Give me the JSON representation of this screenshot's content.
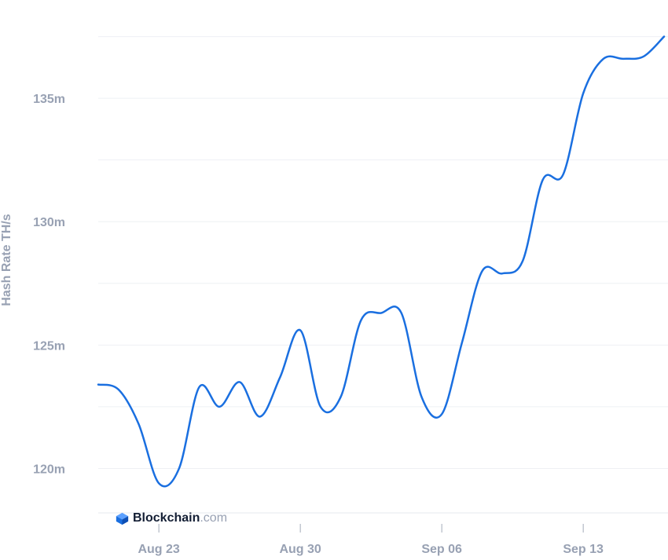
{
  "chart_data": {
    "type": "line",
    "title": "",
    "xlabel": "",
    "ylabel": "Hash Rate TH/s",
    "x_tick_labels": [
      "Aug 23",
      "Aug 30",
      "Sep 06",
      "Sep 13"
    ],
    "y_tick_labels": [
      "120m",
      "125m",
      "130m",
      "135m"
    ],
    "y_ticks": [
      120,
      125,
      130,
      135
    ],
    "ylim": [
      118.2,
      138.6
    ],
    "xlim": [
      "2023-08-20",
      "2023-09-17"
    ],
    "grid": true,
    "legend": "none",
    "series": [
      {
        "color": "#1a6fe0",
        "points": [
          {
            "x": "2023-08-20",
            "y": 123.4
          },
          {
            "x": "2023-08-21",
            "y": 123.2
          },
          {
            "x": "2023-08-22",
            "y": 121.8
          },
          {
            "x": "2023-08-23",
            "y": 119.4
          },
          {
            "x": "2023-08-24",
            "y": 120.0
          },
          {
            "x": "2023-08-25",
            "y": 123.3
          },
          {
            "x": "2023-08-26",
            "y": 122.5
          },
          {
            "x": "2023-08-27",
            "y": 123.5
          },
          {
            "x": "2023-08-28",
            "y": 122.1
          },
          {
            "x": "2023-08-29",
            "y": 123.7
          },
          {
            "x": "2023-08-30",
            "y": 125.6
          },
          {
            "x": "2023-08-31",
            "y": 122.5
          },
          {
            "x": "2023-09-01",
            "y": 122.9
          },
          {
            "x": "2023-09-02",
            "y": 126.0
          },
          {
            "x": "2023-09-03",
            "y": 126.3
          },
          {
            "x": "2023-09-04",
            "y": 126.3
          },
          {
            "x": "2023-09-05",
            "y": 122.9
          },
          {
            "x": "2023-09-06",
            "y": 122.2
          },
          {
            "x": "2023-09-07",
            "y": 125.1
          },
          {
            "x": "2023-09-08",
            "y": 128.0
          },
          {
            "x": "2023-09-09",
            "y": 127.9
          },
          {
            "x": "2023-09-10",
            "y": 128.4
          },
          {
            "x": "2023-09-11",
            "y": 131.7
          },
          {
            "x": "2023-09-12",
            "y": 131.9
          },
          {
            "x": "2023-09-13",
            "y": 135.2
          },
          {
            "x": "2023-09-14",
            "y": 136.6
          },
          {
            "x": "2023-09-15",
            "y": 136.6
          },
          {
            "x": "2023-09-16",
            "y": 136.7
          },
          {
            "x": "2023-09-17",
            "y": 137.5
          }
        ]
      }
    ]
  },
  "branding": {
    "name": "Blockchain",
    "tld": ".com",
    "icon": "blockchain-logo-icon",
    "icon_colors": [
      "#1a6fe0",
      "#5ba0ff",
      "#0d4fb5"
    ]
  }
}
